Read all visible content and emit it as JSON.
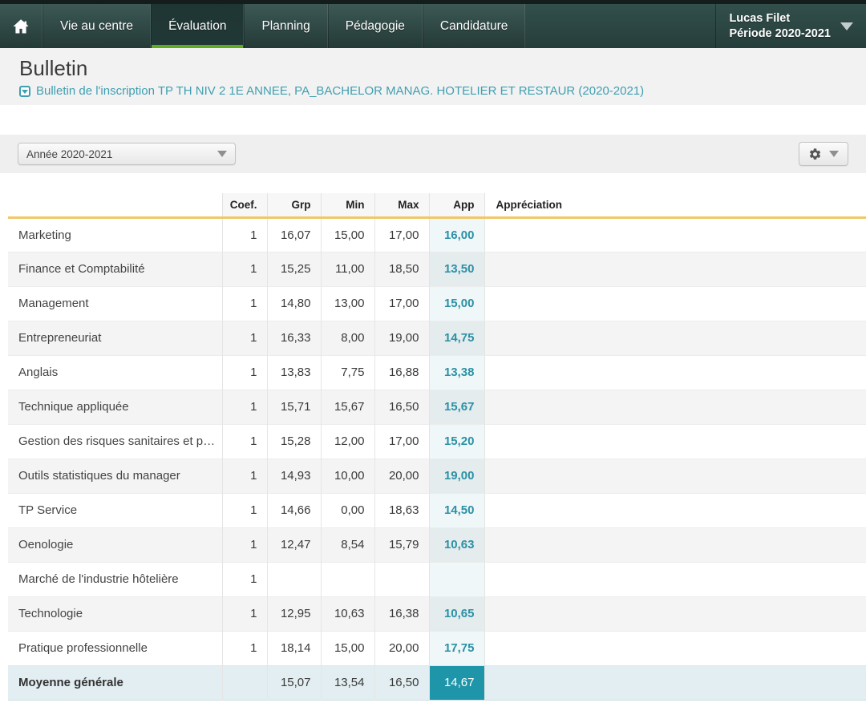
{
  "nav": {
    "tabs": [
      {
        "label": "Vie au centre",
        "active": false
      },
      {
        "label": "Évaluation",
        "active": true
      },
      {
        "label": "Planning",
        "active": false
      },
      {
        "label": "Pédagogie",
        "active": false
      },
      {
        "label": "Candidature",
        "active": false
      }
    ],
    "user": {
      "name": "Lucas Filet",
      "period": "Période 2020-2021"
    }
  },
  "page": {
    "title": "Bulletin",
    "bulletin_link": "Bulletin de l'inscription TP TH NIV 2 1E ANNEE, PA_BACHELOR MANAG. HOTELIER ET RESTAUR (2020-2021)"
  },
  "toolbar": {
    "year_select_value": "Année 2020-2021",
    "settings_icon": "gear-icon"
  },
  "table": {
    "columns": [
      "Coef.",
      "Grp",
      "Min",
      "Max",
      "App",
      "Appréciation"
    ],
    "rows": [
      {
        "subject": "Marketing",
        "coef": "1",
        "grp": "16,07",
        "min": "15,00",
        "max": "17,00",
        "app": "16,00",
        "appreciation": ""
      },
      {
        "subject": "Finance et Comptabilité",
        "coef": "1",
        "grp": "15,25",
        "min": "11,00",
        "max": "18,50",
        "app": "13,50",
        "appreciation": ""
      },
      {
        "subject": "Management",
        "coef": "1",
        "grp": "14,80",
        "min": "13,00",
        "max": "17,00",
        "app": "15,00",
        "appreciation": ""
      },
      {
        "subject": "Entrepreneuriat",
        "coef": "1",
        "grp": "16,33",
        "min": "8,00",
        "max": "19,00",
        "app": "14,75",
        "appreciation": ""
      },
      {
        "subject": "Anglais",
        "coef": "1",
        "grp": "13,83",
        "min": "7,75",
        "max": "16,88",
        "app": "13,38",
        "appreciation": ""
      },
      {
        "subject": "Technique appliquée",
        "coef": "1",
        "grp": "15,71",
        "min": "15,67",
        "max": "16,50",
        "app": "15,67",
        "appreciation": ""
      },
      {
        "subject": "Gestion des risques sanitaires et p…",
        "coef": "1",
        "grp": "15,28",
        "min": "12,00",
        "max": "17,00",
        "app": "15,20",
        "appreciation": ""
      },
      {
        "subject": "Outils statistiques du manager",
        "coef": "1",
        "grp": "14,93",
        "min": "10,00",
        "max": "20,00",
        "app": "19,00",
        "appreciation": ""
      },
      {
        "subject": "TP Service",
        "coef": "1",
        "grp": "14,66",
        "min": "0,00",
        "max": "18,63",
        "app": "14,50",
        "appreciation": ""
      },
      {
        "subject": "Oenologie",
        "coef": "1",
        "grp": "12,47",
        "min": "8,54",
        "max": "15,79",
        "app": "10,63",
        "appreciation": ""
      },
      {
        "subject": "Marché de l'industrie hôtelière",
        "coef": "1",
        "grp": "",
        "min": "",
        "max": "",
        "app": "",
        "appreciation": ""
      },
      {
        "subject": "Technologie",
        "coef": "1",
        "grp": "12,95",
        "min": "10,63",
        "max": "16,38",
        "app": "10,65",
        "appreciation": ""
      },
      {
        "subject": "Pratique professionnelle",
        "coef": "1",
        "grp": "18,14",
        "min": "15,00",
        "max": "20,00",
        "app": "17,75",
        "appreciation": ""
      }
    ],
    "footer": {
      "subject": "Moyenne générale",
      "coef": "",
      "grp": "15,07",
      "min": "13,54",
      "max": "16,50",
      "app": "14,67",
      "appreciation": ""
    }
  },
  "colors": {
    "nav_background": "#2d4845",
    "active_tab_underline": "#5fad1f",
    "link_teal": "#3f9fb1",
    "grade_teal": "#2b91a5",
    "average_cell_background": "#1e95a9",
    "header_underline_yellow": "#f0c767"
  }
}
